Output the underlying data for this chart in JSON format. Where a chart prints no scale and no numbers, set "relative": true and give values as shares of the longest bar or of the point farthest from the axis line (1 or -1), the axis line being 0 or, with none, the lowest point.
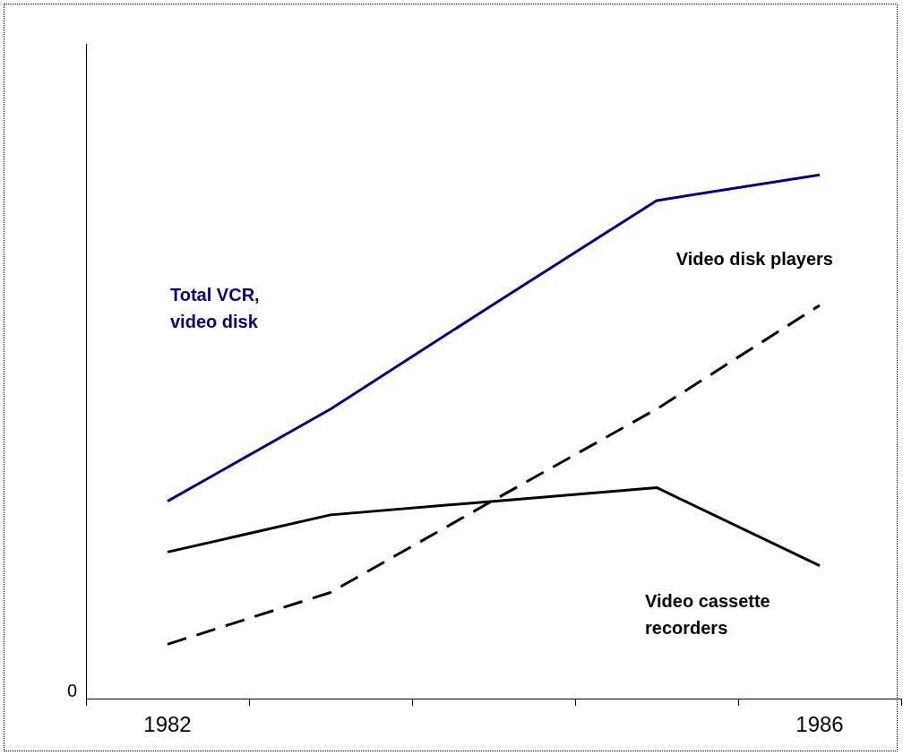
{
  "chart_data": {
    "type": "line",
    "relative": true,
    "categories": [
      "1982",
      null,
      null,
      null,
      "1986"
    ],
    "series": [
      {
        "name": "Total VCR, video disk",
        "color": "#000080",
        "values": [
          0.377,
          0.553,
          0.753,
          0.951,
          1
        ],
        "line_style": "solid"
      },
      {
        "name": "Video disk players",
        "color": "#000000",
        "values": [
          0.104,
          0.203,
          0.379,
          0.553,
          0.751
        ],
        "line_style": "dashed"
      },
      {
        "name": "Video cassette recorders",
        "color": "#000000",
        "values": [
          0.28,
          0.351,
          0.377,
          0.403,
          0.254
        ],
        "line_style": "solid"
      }
    ],
    "annotations": [
      "0"
    ],
    "grid": false,
    "legend": false,
    "marker": "none"
  }
}
